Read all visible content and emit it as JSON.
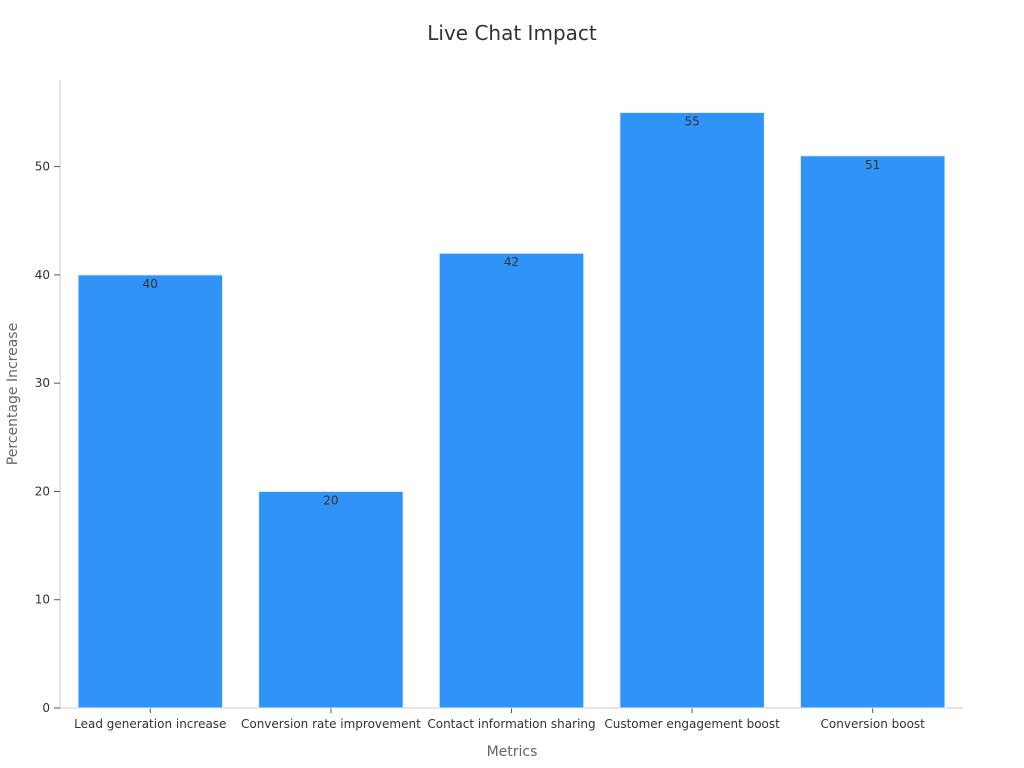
{
  "chart_data": {
    "type": "bar",
    "title": "Live Chat Impact",
    "xlabel": "Metrics",
    "ylabel": "Percentage Increase",
    "categories": [
      "Lead generation increase",
      "Conversion rate improvement",
      "Contact information sharing",
      "Customer engagement boost",
      "Conversion boost"
    ],
    "values": [
      40,
      20,
      42,
      55,
      51
    ],
    "data_labels": [
      "40",
      "20",
      "42",
      "55",
      "51"
    ],
    "ylim": [
      0,
      58
    ],
    "yticks": [
      0,
      10,
      20,
      30,
      40,
      50
    ],
    "grid": false,
    "legend": "none",
    "colors": {
      "bar": "#2f93f8",
      "bar_edge": "#e8eef5",
      "axis": "#cccccc",
      "text": "#333333",
      "axis_title": "#666666"
    }
  }
}
